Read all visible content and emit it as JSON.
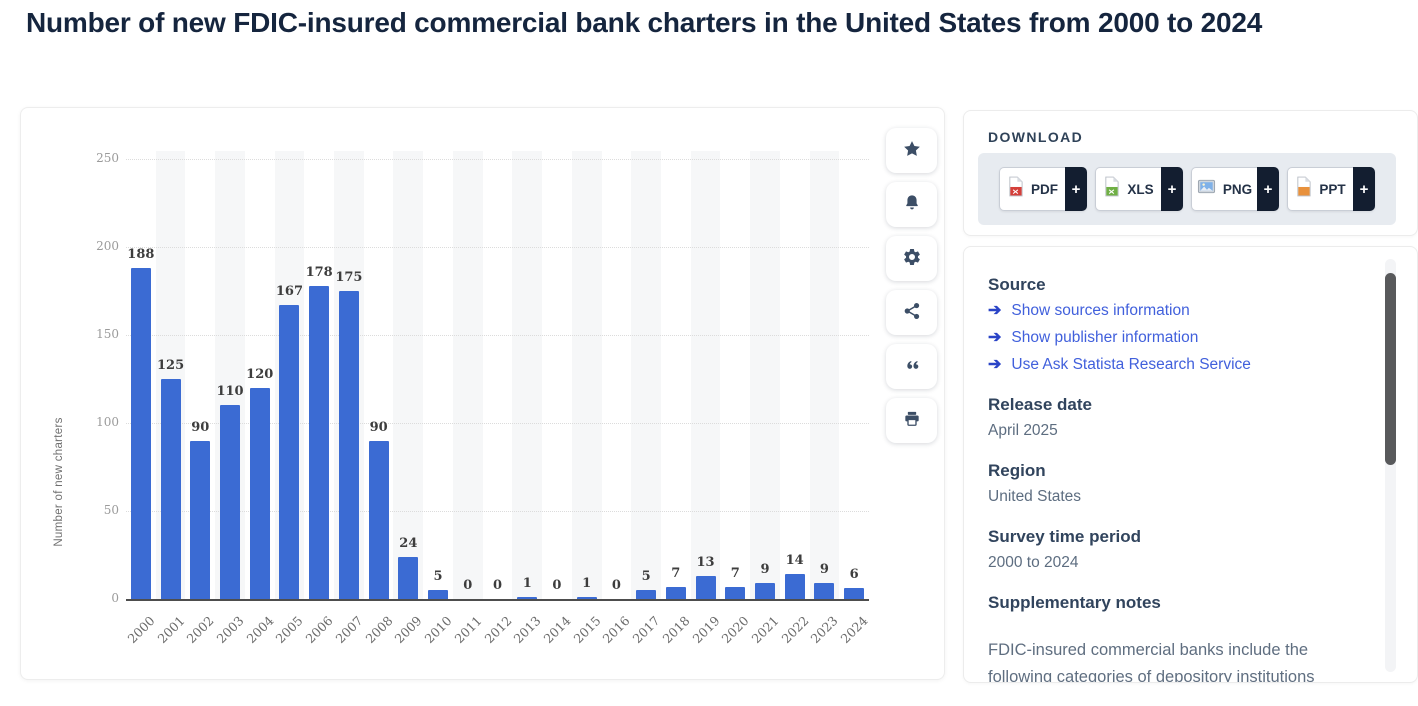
{
  "page": {
    "title": "Number of new FDIC-insured commercial bank charters in the United States from 2000 to 2024"
  },
  "chart_data": {
    "type": "bar",
    "title": "Number of new FDIC-insured commercial bank charters in the United States from 2000 to 2024",
    "categories": [
      "2000",
      "2001",
      "2002",
      "2003",
      "2004",
      "2005",
      "2006",
      "2007",
      "2008",
      "2009",
      "2010",
      "2011",
      "2012",
      "2013",
      "2014",
      "2015",
      "2016",
      "2017",
      "2018",
      "2019",
      "2020",
      "2021",
      "2022",
      "2023",
      "2024"
    ],
    "values": [
      188,
      125,
      90,
      110,
      120,
      167,
      178,
      175,
      90,
      24,
      5,
      0,
      0,
      1,
      0,
      1,
      0,
      5,
      7,
      13,
      7,
      9,
      14,
      9,
      6
    ],
    "xlabel": "",
    "ylabel": "Number of new charters",
    "yticks": [
      0,
      50,
      100,
      150,
      200,
      250
    ],
    "ylim": [
      0,
      250
    ],
    "grid": "horizontal-dotted",
    "legend": "none",
    "bar_color": "#3b6bd3",
    "stripe_color": "#f6f7f8"
  },
  "toolbar": {
    "buttons": [
      {
        "name": "favorite",
        "icon": "star-icon"
      },
      {
        "name": "alert",
        "icon": "bell-icon"
      },
      {
        "name": "settings",
        "icon": "gear-icon"
      },
      {
        "name": "share",
        "icon": "share-icon"
      },
      {
        "name": "cite",
        "icon": "quote-icon"
      },
      {
        "name": "print",
        "icon": "printer-icon"
      }
    ]
  },
  "download": {
    "label": "DOWNLOAD",
    "plus_label": "+",
    "formats": [
      {
        "label": "PDF",
        "icon": "pdf-file-icon",
        "color": "#d43f3a"
      },
      {
        "label": "XLS",
        "icon": "xls-file-icon",
        "color": "#6faf44"
      },
      {
        "label": "PNG",
        "icon": "png-image-icon",
        "color": "#7fb1e8"
      },
      {
        "label": "PPT",
        "icon": "ppt-file-icon",
        "color": "#e8913c"
      }
    ]
  },
  "info": {
    "source": {
      "heading": "Source",
      "links": [
        "Show sources information",
        "Show publisher information",
        "Use Ask Statista Research Service"
      ]
    },
    "release_date": {
      "heading": "Release date",
      "value": "April 2025"
    },
    "region": {
      "heading": "Region",
      "value": "United States"
    },
    "survey_time_period": {
      "heading": "Survey time period",
      "value": "2000 to 2024"
    },
    "supplementary_notes": {
      "heading": "Supplementary notes",
      "text": "FDIC-insured commercial banks include the following categories of depository institutions"
    }
  }
}
